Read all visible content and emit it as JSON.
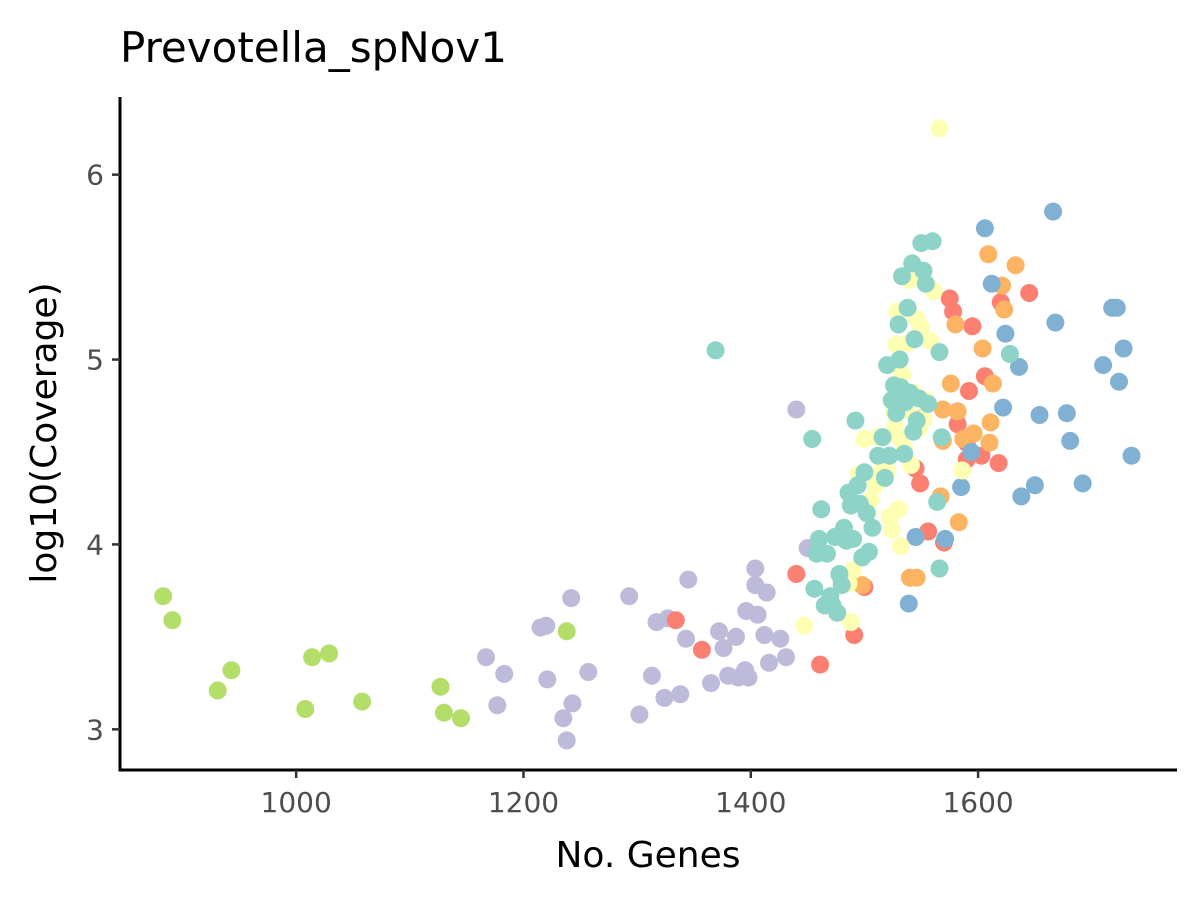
{
  "chart_data": {
    "type": "scatter",
    "title": "Prevotella_spNov1",
    "xlabel": "No. Genes",
    "ylabel": "log10(Coverage)",
    "xlim": [
      845,
      1775
    ],
    "ylim": [
      2.78,
      6.42
    ],
    "xticks": [
      1000,
      1200,
      1400,
      1600
    ],
    "yticks": [
      3,
      4,
      5,
      6
    ],
    "grid": false,
    "legend": "none",
    "series": [
      {
        "color": "#B3DE69",
        "points": [
          [
            883,
            3.72
          ],
          [
            891,
            3.59
          ],
          [
            931,
            3.21
          ],
          [
            943,
            3.32
          ],
          [
            1008,
            3.11
          ],
          [
            1014,
            3.39
          ],
          [
            1029,
            3.41
          ],
          [
            1058,
            3.15
          ],
          [
            1127,
            3.23
          ],
          [
            1130,
            3.09
          ],
          [
            1145,
            3.06
          ],
          [
            1238,
            3.53
          ]
        ]
      },
      {
        "color": "#BEBADA",
        "points": [
          [
            1167,
            3.39
          ],
          [
            1177,
            3.13
          ],
          [
            1183,
            3.3
          ],
          [
            1215,
            3.55
          ],
          [
            1220,
            3.56
          ],
          [
            1221,
            3.27
          ],
          [
            1235,
            3.06
          ],
          [
            1238,
            2.94
          ],
          [
            1242,
            3.71
          ],
          [
            1243,
            3.14
          ],
          [
            1257,
            3.31
          ],
          [
            1293,
            3.72
          ],
          [
            1302,
            3.08
          ],
          [
            1313,
            3.29
          ],
          [
            1317,
            3.58
          ],
          [
            1324,
            3.17
          ],
          [
            1327,
            3.6
          ],
          [
            1338,
            3.19
          ],
          [
            1343,
            3.49
          ],
          [
            1345,
            3.81
          ],
          [
            1365,
            3.25
          ],
          [
            1372,
            3.53
          ],
          [
            1376,
            3.44
          ],
          [
            1380,
            3.29
          ],
          [
            1387,
            3.5
          ],
          [
            1389,
            3.28
          ],
          [
            1395,
            3.32
          ],
          [
            1396,
            3.64
          ],
          [
            1398,
            3.28
          ],
          [
            1404,
            3.87
          ],
          [
            1404,
            3.78
          ],
          [
            1406,
            3.62
          ],
          [
            1412,
            3.51
          ],
          [
            1414,
            3.74
          ],
          [
            1416,
            3.36
          ],
          [
            1426,
            3.49
          ],
          [
            1431,
            3.39
          ],
          [
            1440,
            4.73
          ],
          [
            1450,
            3.98
          ]
        ]
      },
      {
        "color": "#FB8072",
        "points": [
          [
            1334,
            3.59
          ],
          [
            1357,
            3.43
          ],
          [
            1440,
            3.84
          ],
          [
            1461,
            3.35
          ],
          [
            1491,
            3.51
          ],
          [
            1500,
            3.77
          ],
          [
            1549,
            4.33
          ],
          [
            1545,
            4.41
          ],
          [
            1556,
            4.07
          ],
          [
            1570,
            4.01
          ],
          [
            1575,
            5.33
          ],
          [
            1578,
            5.26
          ],
          [
            1582,
            4.65
          ],
          [
            1590,
            4.46
          ],
          [
            1592,
            4.83
          ],
          [
            1595,
            5.18
          ],
          [
            1603,
            4.48
          ],
          [
            1606,
            4.91
          ],
          [
            1618,
            4.44
          ],
          [
            1620,
            5.31
          ],
          [
            1645,
            5.36
          ],
          [
            1590,
            4.55
          ]
        ]
      },
      {
        "color": "#FDB462",
        "points": [
          [
            1480,
            3.8
          ],
          [
            1498,
            3.78
          ],
          [
            1540,
            3.82
          ],
          [
            1546,
            3.82
          ],
          [
            1550,
            4.68
          ],
          [
            1567,
            4.26
          ],
          [
            1569,
            4.73
          ],
          [
            1569,
            4.56
          ],
          [
            1576,
            4.87
          ],
          [
            1580,
            5.19
          ],
          [
            1582,
            4.72
          ],
          [
            1583,
            4.12
          ],
          [
            1587,
            4.57
          ],
          [
            1596,
            4.6
          ],
          [
            1604,
            5.06
          ],
          [
            1609,
            5.57
          ],
          [
            1610,
            4.55
          ],
          [
            1611,
            4.66
          ],
          [
            1613,
            4.87
          ],
          [
            1621,
            5.4
          ],
          [
            1623,
            5.27
          ],
          [
            1633,
            5.51
          ]
        ]
      },
      {
        "color": "#80B1D3",
        "points": [
          [
            1539,
            3.68
          ],
          [
            1545,
            4.04
          ],
          [
            1571,
            4.03
          ],
          [
            1585,
            4.31
          ],
          [
            1594,
            4.5
          ],
          [
            1606,
            5.71
          ],
          [
            1612,
            5.41
          ],
          [
            1622,
            4.74
          ],
          [
            1624,
            5.14
          ],
          [
            1636,
            4.96
          ],
          [
            1638,
            4.26
          ],
          [
            1650,
            4.32
          ],
          [
            1654,
            4.7
          ],
          [
            1666,
            5.8
          ],
          [
            1668,
            5.2
          ],
          [
            1678,
            4.71
          ],
          [
            1681,
            4.56
          ],
          [
            1692,
            4.33
          ],
          [
            1710,
            4.97
          ],
          [
            1718,
            5.28
          ],
          [
            1722,
            5.28
          ],
          [
            1724,
            4.88
          ],
          [
            1728,
            5.06
          ],
          [
            1735,
            4.48
          ]
        ]
      },
      {
        "color": "#FFFFB3",
        "points": [
          [
            1447,
            3.56
          ],
          [
            1478,
            4.05
          ],
          [
            1486,
            3.79
          ],
          [
            1488,
            3.58
          ],
          [
            1490,
            3.86
          ],
          [
            1495,
            4.38
          ],
          [
            1500,
            4.57
          ],
          [
            1503,
            4.17
          ],
          [
            1505,
            4.24
          ],
          [
            1510,
            4.32
          ],
          [
            1512,
            4.58
          ],
          [
            1514,
            4.39
          ],
          [
            1516,
            4.47
          ],
          [
            1518,
            4.36
          ],
          [
            1520,
            4.4
          ],
          [
            1522,
            4.15
          ],
          [
            1524,
            4.08
          ],
          [
            1526,
            4.72
          ],
          [
            1527,
            4.64
          ],
          [
            1528,
            5.08
          ],
          [
            1529,
            5.26
          ],
          [
            1530,
            4.19
          ],
          [
            1531,
            4.58
          ],
          [
            1532,
            3.99
          ],
          [
            1533,
            4.92
          ],
          [
            1535,
            4.52
          ],
          [
            1537,
            4.73
          ],
          [
            1538,
            5.09
          ],
          [
            1540,
            5.43
          ],
          [
            1541,
            4.43
          ],
          [
            1543,
            4.82
          ],
          [
            1545,
            5.46
          ],
          [
            1546,
            5.22
          ],
          [
            1548,
            4.63
          ],
          [
            1550,
            5.17
          ],
          [
            1552,
            4.68
          ],
          [
            1554,
            4.78
          ],
          [
            1558,
            5.1
          ],
          [
            1561,
            5.37
          ],
          [
            1566,
            6.25
          ],
          [
            1586,
            4.4
          ]
        ]
      },
      {
        "color": "#8DD3C7",
        "points": [
          [
            1369,
            5.05
          ],
          [
            1454,
            4.57
          ],
          [
            1456,
            3.76
          ],
          [
            1458,
            3.95
          ],
          [
            1460,
            4.03
          ],
          [
            1462,
            4.19
          ],
          [
            1465,
            3.67
          ],
          [
            1467,
            3.95
          ],
          [
            1470,
            3.72
          ],
          [
            1472,
            3.67
          ],
          [
            1474,
            4.04
          ],
          [
            1476,
            3.63
          ],
          [
            1478,
            3.84
          ],
          [
            1480,
            3.78
          ],
          [
            1482,
            4.09
          ],
          [
            1484,
            4.02
          ],
          [
            1486,
            4.28
          ],
          [
            1488,
            4.21
          ],
          [
            1490,
            4.03
          ],
          [
            1492,
            4.67
          ],
          [
            1494,
            4.32
          ],
          [
            1496,
            4.22
          ],
          [
            1498,
            3.93
          ],
          [
            1500,
            4.39
          ],
          [
            1502,
            4.17
          ],
          [
            1504,
            3.96
          ],
          [
            1507,
            4.09
          ],
          [
            1512,
            4.48
          ],
          [
            1516,
            4.58
          ],
          [
            1518,
            4.36
          ],
          [
            1520,
            4.97
          ],
          [
            1522,
            4.48
          ],
          [
            1524,
            4.78
          ],
          [
            1526,
            4.86
          ],
          [
            1528,
            4.71
          ],
          [
            1530,
            5.19
          ],
          [
            1531,
            5.0
          ],
          [
            1532,
            4.85
          ],
          [
            1533,
            5.45
          ],
          [
            1535,
            4.49
          ],
          [
            1536,
            4.77
          ],
          [
            1538,
            5.28
          ],
          [
            1540,
            4.82
          ],
          [
            1542,
            5.52
          ],
          [
            1543,
            4.61
          ],
          [
            1544,
            5.11
          ],
          [
            1546,
            4.67
          ],
          [
            1548,
            4.79
          ],
          [
            1550,
            5.63
          ],
          [
            1552,
            5.48
          ],
          [
            1554,
            5.41
          ],
          [
            1556,
            4.76
          ],
          [
            1560,
            5.64
          ],
          [
            1564,
            4.23
          ],
          [
            1566,
            3.87
          ],
          [
            1568,
            4.58
          ],
          [
            1566,
            5.04
          ],
          [
            1628,
            5.03
          ]
        ]
      }
    ]
  }
}
